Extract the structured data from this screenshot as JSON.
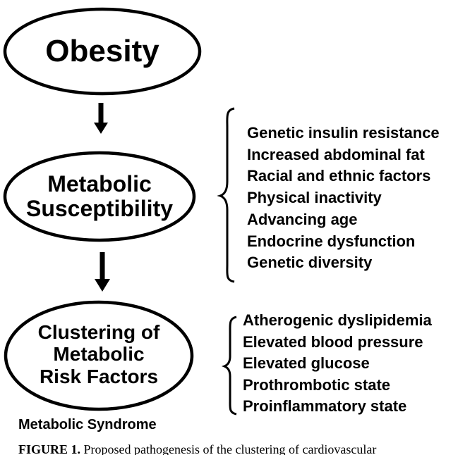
{
  "boxes": {
    "obesity": "Obesity",
    "metabolic_susceptibility": [
      "Metabolic",
      "Susceptibility"
    ],
    "clustering": [
      "Clustering of",
      "Metabolic",
      "Risk Factors"
    ]
  },
  "susceptibility_factors": [
    "Genetic insulin resistance",
    "Increased abdominal fat",
    "Racial and ethnic factors",
    "Physical inactivity",
    "Advancing age",
    "Endocrine dysfunction",
    "Genetic diversity"
  ],
  "risk_factors": [
    "Atherogenic dyslipidemia",
    "Elevated blood pressure",
    "Elevated glucose",
    "Prothrombotic state",
    "Proinflammatory state"
  ],
  "syndrome_label": "Metabolic Syndrome",
  "caption": {
    "lead": "FIGURE 1.",
    "text": "Proposed pathogenesis of the clustering of cardiovascular"
  }
}
